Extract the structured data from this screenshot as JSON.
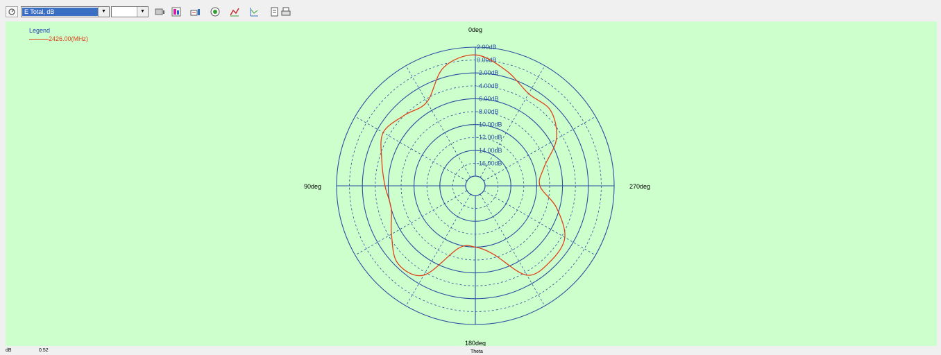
{
  "toolbar": {
    "quantity_select": "E Total, dB",
    "second_select": "",
    "dropdown_arrow": "▼"
  },
  "legend": {
    "title": "Legend",
    "entries": [
      {
        "label": "2426.00(MHz)",
        "color": "#e0401a"
      }
    ]
  },
  "status": {
    "unit": "dB",
    "value": "0.52",
    "axis": "Theta"
  },
  "colors": {
    "background": "#ccffcc",
    "grid": "#2a4ea0",
    "trace": "#e0401a"
  },
  "chart_data": {
    "type": "polar-line",
    "angle_labels": [
      {
        "deg": 0,
        "label": "0deg"
      },
      {
        "deg": 90,
        "label": "90deg"
      },
      {
        "deg": 180,
        "label": "180deg"
      },
      {
        "deg": 270,
        "label": "270deg"
      }
    ],
    "angle_direction": "counterclockwise, 0deg at top",
    "radial_axis": {
      "min": -18,
      "max": 2,
      "step": 2,
      "unit": "dB",
      "tick_labels": [
        "2.00dB",
        "0.00dB",
        "-2.00dB",
        "-4.00dB",
        "-6.00dB",
        "-8.00dB",
        "-10.00dB",
        "-12.00dB",
        "-14.00dB",
        "-16.00dB"
      ]
    },
    "series": [
      {
        "name": "2426.00(MHz)",
        "theta_deg": [
          0,
          15,
          30,
          45,
          60,
          75,
          90,
          105,
          120,
          135,
          150,
          165,
          180,
          195,
          210,
          225,
          240,
          255,
          270,
          285,
          300,
          315,
          330,
          345
        ],
        "r_db": [
          0.8,
          -0.5,
          -4.5,
          -4.0,
          -3.0,
          -4.5,
          -5.5,
          -6.0,
          -4.5,
          -2.5,
          -3.5,
          -9.5,
          -10.0,
          -8.5,
          -3.5,
          -3.0,
          -3.5,
          -6.5,
          -9.5,
          -8.5,
          -5.0,
          -3.0,
          -3.0,
          -1.0
        ]
      }
    ]
  }
}
